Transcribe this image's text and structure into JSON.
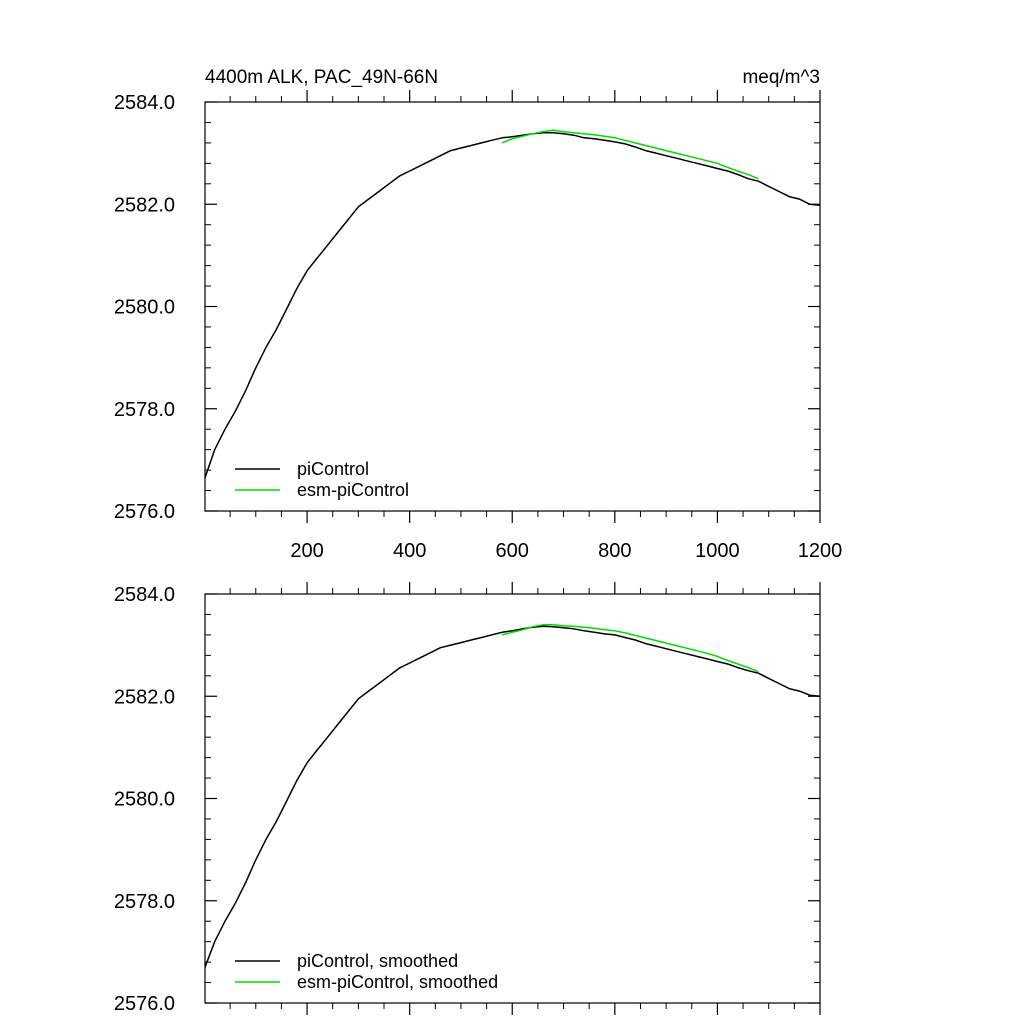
{
  "chart_data": [
    {
      "type": "line",
      "title": "4400m ALK, PAC_49N-66N",
      "units": "meq/m^3",
      "xlim": [
        1,
        1200
      ],
      "ylim": [
        2576.0,
        2584.0
      ],
      "xticks": [
        200,
        400,
        600,
        800,
        1000,
        1200
      ],
      "xticklabels": [
        "200",
        "400",
        "600",
        "800",
        "1000",
        "1200"
      ],
      "yticks": [
        2576.0,
        2578.0,
        2580.0,
        2582.0,
        2584.0
      ],
      "yticklabels": [
        "2576.0",
        "2578.0",
        "2580.0",
        "2582.0",
        "2584.0"
      ],
      "legend_position": "bottom-left",
      "series": [
        {
          "name": "piControl",
          "color": "#000000",
          "x": [
            1,
            20,
            40,
            60,
            80,
            100,
            120,
            140,
            160,
            180,
            200,
            220,
            240,
            260,
            280,
            300,
            320,
            340,
            360,
            380,
            400,
            420,
            440,
            460,
            480,
            500,
            520,
            540,
            560,
            580,
            600,
            620,
            640,
            660,
            680,
            700,
            720,
            740,
            760,
            780,
            800,
            820,
            840,
            860,
            880,
            900,
            920,
            940,
            960,
            980,
            1000,
            1020,
            1040,
            1060,
            1080,
            1100,
            1120,
            1140,
            1160,
            1180,
            1200
          ],
          "y": [
            2576.65,
            2577.2,
            2577.6,
            2577.95,
            2578.35,
            2578.8,
            2579.2,
            2579.55,
            2579.95,
            2580.35,
            2580.7,
            2580.95,
            2581.2,
            2581.45,
            2581.7,
            2581.95,
            2582.1,
            2582.25,
            2582.4,
            2582.55,
            2582.65,
            2582.75,
            2582.85,
            2582.95,
            2583.05,
            2583.1,
            2583.15,
            2583.2,
            2583.25,
            2583.3,
            2583.32,
            2583.35,
            2583.38,
            2583.4,
            2583.4,
            2583.38,
            2583.35,
            2583.3,
            2583.28,
            2583.25,
            2583.22,
            2583.18,
            2583.12,
            2583.05,
            2583.0,
            2582.95,
            2582.9,
            2582.85,
            2582.8,
            2582.75,
            2582.7,
            2582.65,
            2582.58,
            2582.5,
            2582.45,
            2582.35,
            2582.25,
            2582.15,
            2582.1,
            2582.0,
            2581.98
          ]
        },
        {
          "name": "esm-piControl",
          "color": "#00dd00",
          "x": [
            580,
            600,
            620,
            640,
            660,
            680,
            700,
            720,
            740,
            760,
            780,
            800,
            820,
            840,
            860,
            880,
            900,
            920,
            940,
            960,
            980,
            1000,
            1020,
            1040,
            1060,
            1080
          ],
          "y": [
            2583.2,
            2583.28,
            2583.33,
            2583.38,
            2583.42,
            2583.45,
            2583.42,
            2583.4,
            2583.38,
            2583.36,
            2583.33,
            2583.3,
            2583.25,
            2583.2,
            2583.15,
            2583.1,
            2583.05,
            2583.0,
            2582.95,
            2582.9,
            2582.85,
            2582.8,
            2582.72,
            2582.65,
            2582.58,
            2582.5
          ]
        }
      ]
    },
    {
      "type": "line",
      "title": "",
      "units": "",
      "xlim": [
        1,
        1200
      ],
      "ylim": [
        2576.0,
        2584.0
      ],
      "xticks": [
        200,
        400,
        600,
        800,
        1000,
        1200
      ],
      "xticklabels": [],
      "yticks": [
        2576.0,
        2578.0,
        2580.0,
        2582.0,
        2584.0
      ],
      "yticklabels": [
        "2576.0",
        "2578.0",
        "2580.0",
        "2582.0",
        "2584.0"
      ],
      "legend_position": "bottom-left",
      "series": [
        {
          "name": "piControl, smoothed",
          "color": "#000000",
          "x": [
            1,
            20,
            40,
            60,
            80,
            100,
            120,
            140,
            160,
            180,
            200,
            220,
            240,
            260,
            280,
            300,
            320,
            340,
            360,
            380,
            400,
            420,
            440,
            460,
            480,
            500,
            520,
            540,
            560,
            580,
            600,
            620,
            640,
            660,
            680,
            700,
            720,
            740,
            760,
            780,
            800,
            820,
            840,
            860,
            880,
            900,
            920,
            940,
            960,
            980,
            1000,
            1020,
            1040,
            1060,
            1080,
            1100,
            1120,
            1140,
            1160,
            1180,
            1200
          ],
          "y": [
            2576.7,
            2577.2,
            2577.6,
            2577.95,
            2578.35,
            2578.8,
            2579.2,
            2579.55,
            2579.95,
            2580.35,
            2580.7,
            2580.95,
            2581.2,
            2581.45,
            2581.7,
            2581.95,
            2582.1,
            2582.25,
            2582.4,
            2582.55,
            2582.65,
            2582.75,
            2582.85,
            2582.95,
            2583.0,
            2583.05,
            2583.1,
            2583.15,
            2583.2,
            2583.25,
            2583.28,
            2583.32,
            2583.35,
            2583.37,
            2583.36,
            2583.34,
            2583.32,
            2583.28,
            2583.25,
            2583.22,
            2583.2,
            2583.15,
            2583.1,
            2583.03,
            2582.98,
            2582.93,
            2582.88,
            2582.83,
            2582.78,
            2582.73,
            2582.68,
            2582.63,
            2582.56,
            2582.5,
            2582.45,
            2582.35,
            2582.25,
            2582.15,
            2582.1,
            2582.02,
            2582.0
          ]
        },
        {
          "name": "esm-piControl, smoothed",
          "color": "#00dd00",
          "x": [
            580,
            600,
            620,
            640,
            660,
            680,
            700,
            720,
            740,
            760,
            780,
            800,
            820,
            840,
            860,
            880,
            900,
            920,
            940,
            960,
            980,
            1000,
            1020,
            1040,
            1060,
            1080
          ],
          "y": [
            2583.2,
            2583.25,
            2583.3,
            2583.36,
            2583.4,
            2583.4,
            2583.38,
            2583.37,
            2583.35,
            2583.33,
            2583.3,
            2583.28,
            2583.24,
            2583.19,
            2583.14,
            2583.09,
            2583.04,
            2582.99,
            2582.94,
            2582.89,
            2582.84,
            2582.78,
            2582.7,
            2582.63,
            2582.56,
            2582.48
          ]
        }
      ]
    }
  ]
}
